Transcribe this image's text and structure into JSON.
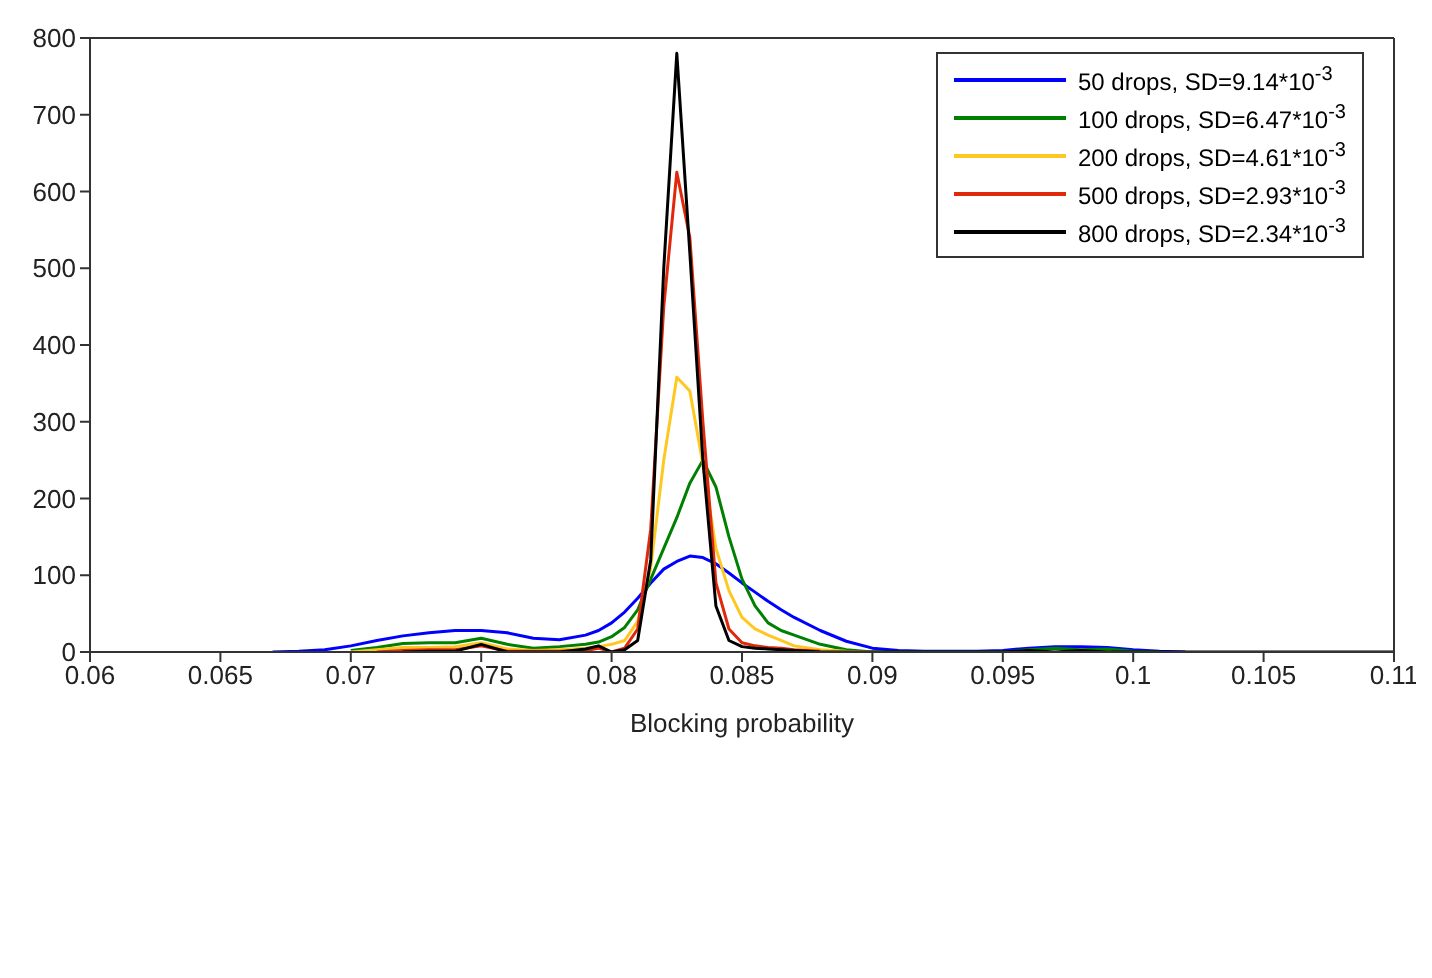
{
  "chart_data": {
    "type": "line",
    "xlabel": "Blocking probability",
    "xlim": [
      0.06,
      0.11
    ],
    "xticks": [
      0.06,
      0.065,
      0.07,
      0.075,
      0.08,
      0.085,
      0.09,
      0.095,
      0.1,
      0.105,
      0.11
    ],
    "ylim": [
      0,
      800
    ],
    "yticks": [
      0,
      100,
      200,
      300,
      400,
      500,
      600,
      700,
      800
    ],
    "legend": "top right",
    "marker": "none",
    "line_style": "solid",
    "x": [
      0.067,
      0.068,
      0.069,
      0.07,
      0.071,
      0.072,
      0.073,
      0.074,
      0.075,
      0.076,
      0.077,
      0.078,
      0.079,
      0.0795,
      0.08,
      0.0805,
      0.081,
      0.0815,
      0.082,
      0.0825,
      0.083,
      0.0835,
      0.084,
      0.0845,
      0.085,
      0.0855,
      0.086,
      0.0865,
      0.087,
      0.088,
      0.089,
      0.09,
      0.091,
      0.092,
      0.093,
      0.094,
      0.095,
      0.096,
      0.097,
      0.098,
      0.099,
      0.1,
      0.101,
      0.102,
      0.103,
      0.104,
      0.105,
      0.106,
      0.107,
      0.108,
      0.109,
      0.11
    ],
    "series": [
      {
        "name": "50 drops, SD=9.14*10$^{-3}$",
        "color": "#0000ff",
        "values": [
          0,
          1,
          3,
          8,
          15,
          21,
          25,
          28,
          28,
          25,
          18,
          16,
          22,
          28,
          38,
          52,
          70,
          90,
          108,
          118,
          125,
          123,
          115,
          103,
          90,
          78,
          66,
          55,
          45,
          28,
          14,
          5,
          2,
          1,
          1,
          1,
          2,
          5,
          7,
          7,
          6,
          3,
          1,
          0,
          null,
          null,
          null,
          null,
          null,
          null,
          null,
          null
        ]
      },
      {
        "name": "100 drops, SD=6.47*10$^{-3}$",
        "color": "#008000",
        "values": [
          null,
          null,
          null,
          2,
          6,
          11,
          12,
          12,
          18,
          10,
          5,
          7,
          10,
          13,
          20,
          32,
          55,
          95,
          135,
          175,
          220,
          250,
          215,
          150,
          95,
          60,
          38,
          28,
          22,
          10,
          3,
          0,
          0,
          0,
          0,
          0,
          0,
          3,
          5,
          3,
          4,
          1,
          0,
          null,
          null,
          null,
          null,
          null,
          null,
          null,
          null,
          null
        ]
      },
      {
        "name": "200 drops, SD=4.61*10$^{-3}$",
        "color": "#ffc820",
        "values": [
          null,
          null,
          null,
          0,
          3,
          6,
          6,
          7,
          12,
          4,
          2,
          3,
          5,
          7,
          10,
          15,
          40,
          110,
          250,
          358,
          340,
          245,
          135,
          80,
          45,
          30,
          22,
          15,
          8,
          3,
          1,
          0,
          null,
          null,
          null,
          null,
          null,
          null,
          null,
          null,
          null,
          null,
          null,
          null,
          null,
          null,
          null,
          null,
          null,
          null,
          null,
          null
        ]
      },
      {
        "name": "500 drops, SD=2.93*10$^{-3}$",
        "color": "#e0280a",
        "values": [
          null,
          null,
          null,
          null,
          0,
          2,
          3,
          3,
          8,
          1,
          1,
          1,
          2,
          5,
          0,
          5,
          30,
          160,
          450,
          625,
          540,
          300,
          90,
          30,
          12,
          8,
          6,
          5,
          3,
          1,
          null,
          null,
          null,
          null,
          null,
          null,
          null,
          null,
          null,
          null,
          null,
          null,
          null,
          null,
          null,
          null,
          null,
          null,
          null,
          null,
          null,
          null
        ]
      },
      {
        "name": "800 drops, SD=2.34*10$^{-3}$",
        "color": "#000000",
        "values": [
          null,
          null,
          null,
          null,
          null,
          0,
          1,
          1,
          10,
          0,
          0,
          0,
          4,
          8,
          0,
          3,
          15,
          120,
          500,
          780,
          520,
          250,
          60,
          15,
          7,
          5,
          4,
          3,
          2,
          0,
          0,
          0,
          0,
          0,
          0,
          0,
          0,
          2,
          0,
          2,
          0,
          0,
          0,
          0,
          0,
          0,
          0,
          0,
          0,
          0,
          0,
          0
        ]
      }
    ]
  }
}
